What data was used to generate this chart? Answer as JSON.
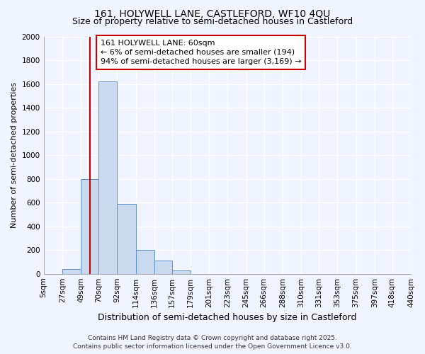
{
  "title": "161, HOLYWELL LANE, CASTLEFORD, WF10 4QU",
  "subtitle": "Size of property relative to semi-detached houses in Castleford",
  "xlabel": "Distribution of semi-detached houses by size in Castleford",
  "ylabel": "Number of semi-detached properties",
  "bin_edges": [
    5,
    27,
    49,
    70,
    92,
    114,
    136,
    157,
    179,
    201,
    223,
    245,
    266,
    288,
    310,
    331,
    353,
    375,
    397,
    418,
    440
  ],
  "bar_heights": [
    0,
    40,
    800,
    1620,
    590,
    200,
    110,
    25,
    0,
    0,
    0,
    0,
    0,
    0,
    0,
    0,
    0,
    0,
    0,
    0
  ],
  "bar_color": "#c8d9f0",
  "bar_edge_color": "#6090c8",
  "background_color": "#f0f4ff",
  "plot_bg_color": "#f0f4ff",
  "grid_color": "#ffffff",
  "property_size": 60,
  "red_line_color": "#cc0000",
  "annotation_line1": "161 HOLYWELL LANE: 60sqm",
  "annotation_line2": "← 6% of semi-detached houses are smaller (194)",
  "annotation_line3": "94% of semi-detached houses are larger (3,169) →",
  "annotation_box_edge": "#cc0000",
  "ylim": [
    0,
    2000
  ],
  "yticks": [
    0,
    200,
    400,
    600,
    800,
    1000,
    1200,
    1400,
    1600,
    1800,
    2000
  ],
  "footer_line1": "Contains HM Land Registry data © Crown copyright and database right 2025.",
  "footer_line2": "Contains public sector information licensed under the Open Government Licence v3.0.",
  "title_fontsize": 10,
  "subtitle_fontsize": 9,
  "tick_label_fontsize": 7.5,
  "ylabel_fontsize": 8,
  "xlabel_fontsize": 9,
  "footer_fontsize": 6.5,
  "annotation_fontsize": 8
}
